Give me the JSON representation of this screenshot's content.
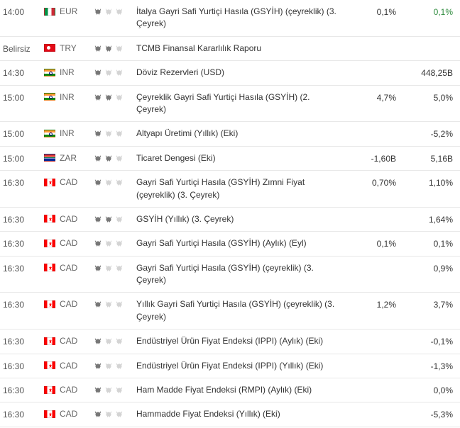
{
  "colors": {
    "positive": "#2e8b3d",
    "negative": "#c33",
    "text": "#333",
    "muted": "#666",
    "border": "#e8e8e8",
    "bull_on": "#777",
    "bull_off": "#d4d4d4"
  },
  "rows": [
    {
      "time": "14:00",
      "flag": "it",
      "currency": "EUR",
      "importance": 1,
      "event": "İtalya Gayri Safi Yurtiçi Hasıla (GSYİH) (çeyreklik) (3. Çeyrek)",
      "actual": "0,1%",
      "forecast": "0,1%",
      "forecast_tone": "pos"
    },
    {
      "time": "Belirsiz",
      "flag": "tr",
      "currency": "TRY",
      "importance": 2,
      "event": "TCMB Finansal Kararlılık Raporu",
      "actual": "",
      "forecast": ""
    },
    {
      "time": "14:30",
      "flag": "in",
      "currency": "INR",
      "importance": 1,
      "event": "Döviz Rezervleri (USD)",
      "actual": "",
      "forecast": "448,25B"
    },
    {
      "time": "15:00",
      "flag": "in",
      "currency": "INR",
      "importance": 2,
      "event": "Çeyreklik Gayri Safi Yurtiçi Hasıla (GSYİH) (2. Çeyrek)",
      "actual": "4,7%",
      "forecast": "5,0%"
    },
    {
      "time": "15:00",
      "flag": "in",
      "currency": "INR",
      "importance": 1,
      "event": "Altyapı Üretimi (Yıllık) (Eki)",
      "actual": "",
      "forecast": "-5,2%"
    },
    {
      "time": "15:00",
      "flag": "za",
      "currency": "ZAR",
      "importance": 2,
      "event": "Ticaret Dengesi (Eki)",
      "actual": "-1,60B",
      "forecast": "5,16B"
    },
    {
      "time": "16:30",
      "flag": "ca",
      "currency": "CAD",
      "importance": 1,
      "event": "Gayri Safi Yurtiçi Hasıla (GSYİH) Zımni Fiyat (çeyreklik) (3. Çeyrek)",
      "actual": "0,70%",
      "forecast": "1,10%"
    },
    {
      "time": "16:30",
      "flag": "ca",
      "currency": "CAD",
      "importance": 2,
      "event": "GSYİH (Yıllık) (3. Çeyrek)",
      "actual": "",
      "forecast": "1,64%"
    },
    {
      "time": "16:30",
      "flag": "ca",
      "currency": "CAD",
      "importance": 1,
      "event": "Gayri Safi Yurtiçi Hasıla (GSYİH) (Aylık) (Eyl)",
      "actual": "0,1%",
      "forecast": "0,1%"
    },
    {
      "time": "16:30",
      "flag": "ca",
      "currency": "CAD",
      "importance": 1,
      "event": "Gayri Safi Yurtiçi Hasıla (GSYİH) (çeyreklik) (3. Çeyrek)",
      "actual": "",
      "forecast": "0,9%"
    },
    {
      "time": "16:30",
      "flag": "ca",
      "currency": "CAD",
      "importance": 1,
      "event": "Yıllık Gayri Safi Yurtiçi Hasıla (GSYİH) (çeyreklik) (3. Çeyrek)",
      "actual": "1,2%",
      "forecast": "3,7%"
    },
    {
      "time": "16:30",
      "flag": "ca",
      "currency": "CAD",
      "importance": 1,
      "event": "Endüstriyel Ürün Fiyat Endeksi (IPPI) (Aylık) (Eki)",
      "actual": "",
      "forecast": "-0,1%"
    },
    {
      "time": "16:30",
      "flag": "ca",
      "currency": "CAD",
      "importance": 1,
      "event": "Endüstriyel Ürün Fiyat Endeksi (IPPI) (Yıllık) (Eki)",
      "actual": "",
      "forecast": "-1,3%"
    },
    {
      "time": "16:30",
      "flag": "ca",
      "currency": "CAD",
      "importance": 1,
      "event": "Ham Madde Fiyat Endeksi (RMPI) (Aylık) (Eki)",
      "actual": "",
      "forecast": "0,0%"
    },
    {
      "time": "16:30",
      "flag": "ca",
      "currency": "CAD",
      "importance": 1,
      "event": "Hammadde Fiyat Endeksi (Yıllık) (Eki)",
      "actual": "",
      "forecast": "-5,3%"
    }
  ]
}
